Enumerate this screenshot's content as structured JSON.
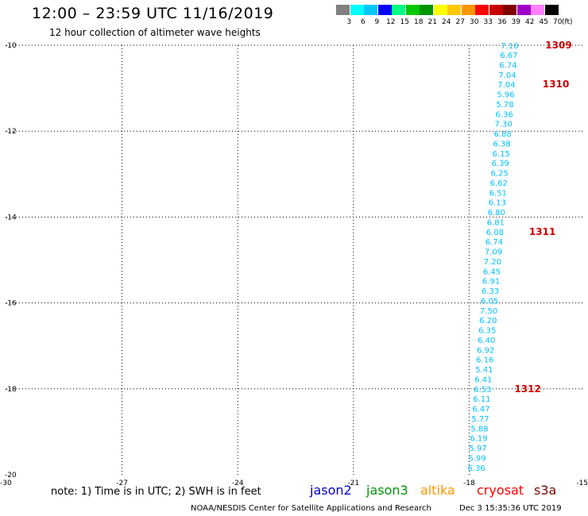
{
  "header": {
    "title": "12:00 – 23:59 UTC 11/16/2019",
    "subtitle": "12 hour collection of altimeter wave heights"
  },
  "color_scale": {
    "unit": "(ft)",
    "labels": [
      "3",
      "6",
      "9",
      "12",
      "15",
      "18",
      "21",
      "24",
      "27",
      "30",
      "33",
      "36",
      "39",
      "42",
      "45",
      "70"
    ],
    "colors": [
      "#808080",
      "#00ffff",
      "#00c8ff",
      "#0000ff",
      "#00ff80",
      "#00c800",
      "#009600",
      "#ffff00",
      "#ffc800",
      "#ff9600",
      "#ff0000",
      "#c80000",
      "#800000",
      "#a000c8",
      "#ff80ff",
      "#000000"
    ]
  },
  "chart_data": {
    "type": "scatter",
    "xlim": [
      -30,
      -15
    ],
    "ylim": [
      -20,
      -10
    ],
    "x_ticks": [
      -30,
      -27,
      -24,
      -21,
      -18,
      -15
    ],
    "y_ticks": [
      -10,
      -12,
      -14,
      -16,
      -18,
      -20
    ],
    "grid": true,
    "series": [
      {
        "color": "#00bfff",
        "points": [
          {
            "x": -16.95,
            "y": -10.0,
            "value": "7.10"
          },
          {
            "x": -16.97,
            "y": -10.22,
            "value": "6.67"
          },
          {
            "x": -16.99,
            "y": -10.45,
            "value": "6.74"
          },
          {
            "x": -17.01,
            "y": -10.68,
            "value": "7.04"
          },
          {
            "x": -17.03,
            "y": -10.91,
            "value": "7.04"
          },
          {
            "x": -17.05,
            "y": -11.14,
            "value": "5.96"
          },
          {
            "x": -17.07,
            "y": -11.37,
            "value": "5.78"
          },
          {
            "x": -17.09,
            "y": -11.6,
            "value": "6.36"
          },
          {
            "x": -17.11,
            "y": -11.82,
            "value": "7.30"
          },
          {
            "x": -17.13,
            "y": -12.05,
            "value": "6.88"
          },
          {
            "x": -17.15,
            "y": -12.28,
            "value": "6.38"
          },
          {
            "x": -17.17,
            "y": -12.51,
            "value": "6.15"
          },
          {
            "x": -17.19,
            "y": -12.74,
            "value": "6.39"
          },
          {
            "x": -17.21,
            "y": -12.97,
            "value": "6.25"
          },
          {
            "x": -17.23,
            "y": -13.2,
            "value": "6.62"
          },
          {
            "x": -17.25,
            "y": -13.43,
            "value": "6.51"
          },
          {
            "x": -17.27,
            "y": -13.65,
            "value": "6.13"
          },
          {
            "x": -17.29,
            "y": -13.88,
            "value": "6.80"
          },
          {
            "x": -17.31,
            "y": -14.11,
            "value": "6.81"
          },
          {
            "x": -17.33,
            "y": -14.34,
            "value": "6.08"
          },
          {
            "x": -17.35,
            "y": -14.57,
            "value": "6.74"
          },
          {
            "x": -17.37,
            "y": -14.8,
            "value": "7.09"
          },
          {
            "x": -17.39,
            "y": -15.03,
            "value": "7.20"
          },
          {
            "x": -17.41,
            "y": -15.26,
            "value": "6.45"
          },
          {
            "x": -17.43,
            "y": -15.48,
            "value": "6.91"
          },
          {
            "x": -17.45,
            "y": -15.71,
            "value": "6.33"
          },
          {
            "x": -17.47,
            "y": -15.94,
            "value": "6.05"
          },
          {
            "x": -17.49,
            "y": -16.17,
            "value": "7.50"
          },
          {
            "x": -17.51,
            "y": -16.4,
            "value": "6.20"
          },
          {
            "x": -17.53,
            "y": -16.63,
            "value": "6.35"
          },
          {
            "x": -17.55,
            "y": -16.86,
            "value": "6.40"
          },
          {
            "x": -17.57,
            "y": -17.09,
            "value": "6.92"
          },
          {
            "x": -17.59,
            "y": -17.31,
            "value": "6.16"
          },
          {
            "x": -17.61,
            "y": -17.54,
            "value": "5.41"
          },
          {
            "x": -17.63,
            "y": -17.77,
            "value": "6.41"
          },
          {
            "x": -17.65,
            "y": -18.0,
            "value": "6.53"
          },
          {
            "x": -17.67,
            "y": -18.23,
            "value": "6.11"
          },
          {
            "x": -17.69,
            "y": -18.46,
            "value": "6.47"
          },
          {
            "x": -17.71,
            "y": -18.69,
            "value": "5.77"
          },
          {
            "x": -17.73,
            "y": -18.92,
            "value": "5.88"
          },
          {
            "x": -17.75,
            "y": -19.14,
            "value": "6.19"
          },
          {
            "x": -17.77,
            "y": -19.37,
            "value": "5.97"
          },
          {
            "x": -17.79,
            "y": -19.6,
            "value": "5.99"
          },
          {
            "x": -17.81,
            "y": -19.83,
            "value": "6.36"
          }
        ]
      }
    ],
    "annotations": [
      {
        "text": "1309",
        "x": -15.68,
        "y": -10.0,
        "color": "#cc0000"
      },
      {
        "text": "1310",
        "x": -15.75,
        "y": -10.91,
        "color": "#cc0000"
      },
      {
        "text": "1311",
        "x": -16.1,
        "y": -14.34,
        "color": "#cc0000"
      },
      {
        "text": "1312",
        "x": -16.48,
        "y": -18.0,
        "color": "#cc0000"
      }
    ]
  },
  "note": "note: 1) Time is in UTC; 2) SWH is in feet",
  "satellites": [
    {
      "name": "jason2",
      "color": "#0000cc"
    },
    {
      "name": "jason3",
      "color": "#009600"
    },
    {
      "name": "altika",
      "color": "#ff9600"
    },
    {
      "name": "cryosat",
      "color": "#ff0000"
    },
    {
      "name": "s3a",
      "color": "#800000"
    }
  ],
  "footer": {
    "credit": "NOAA/NESDIS Center for Satellite Applications and Research",
    "timestamp": "Dec  3 15:35:36 UTC 2019"
  }
}
